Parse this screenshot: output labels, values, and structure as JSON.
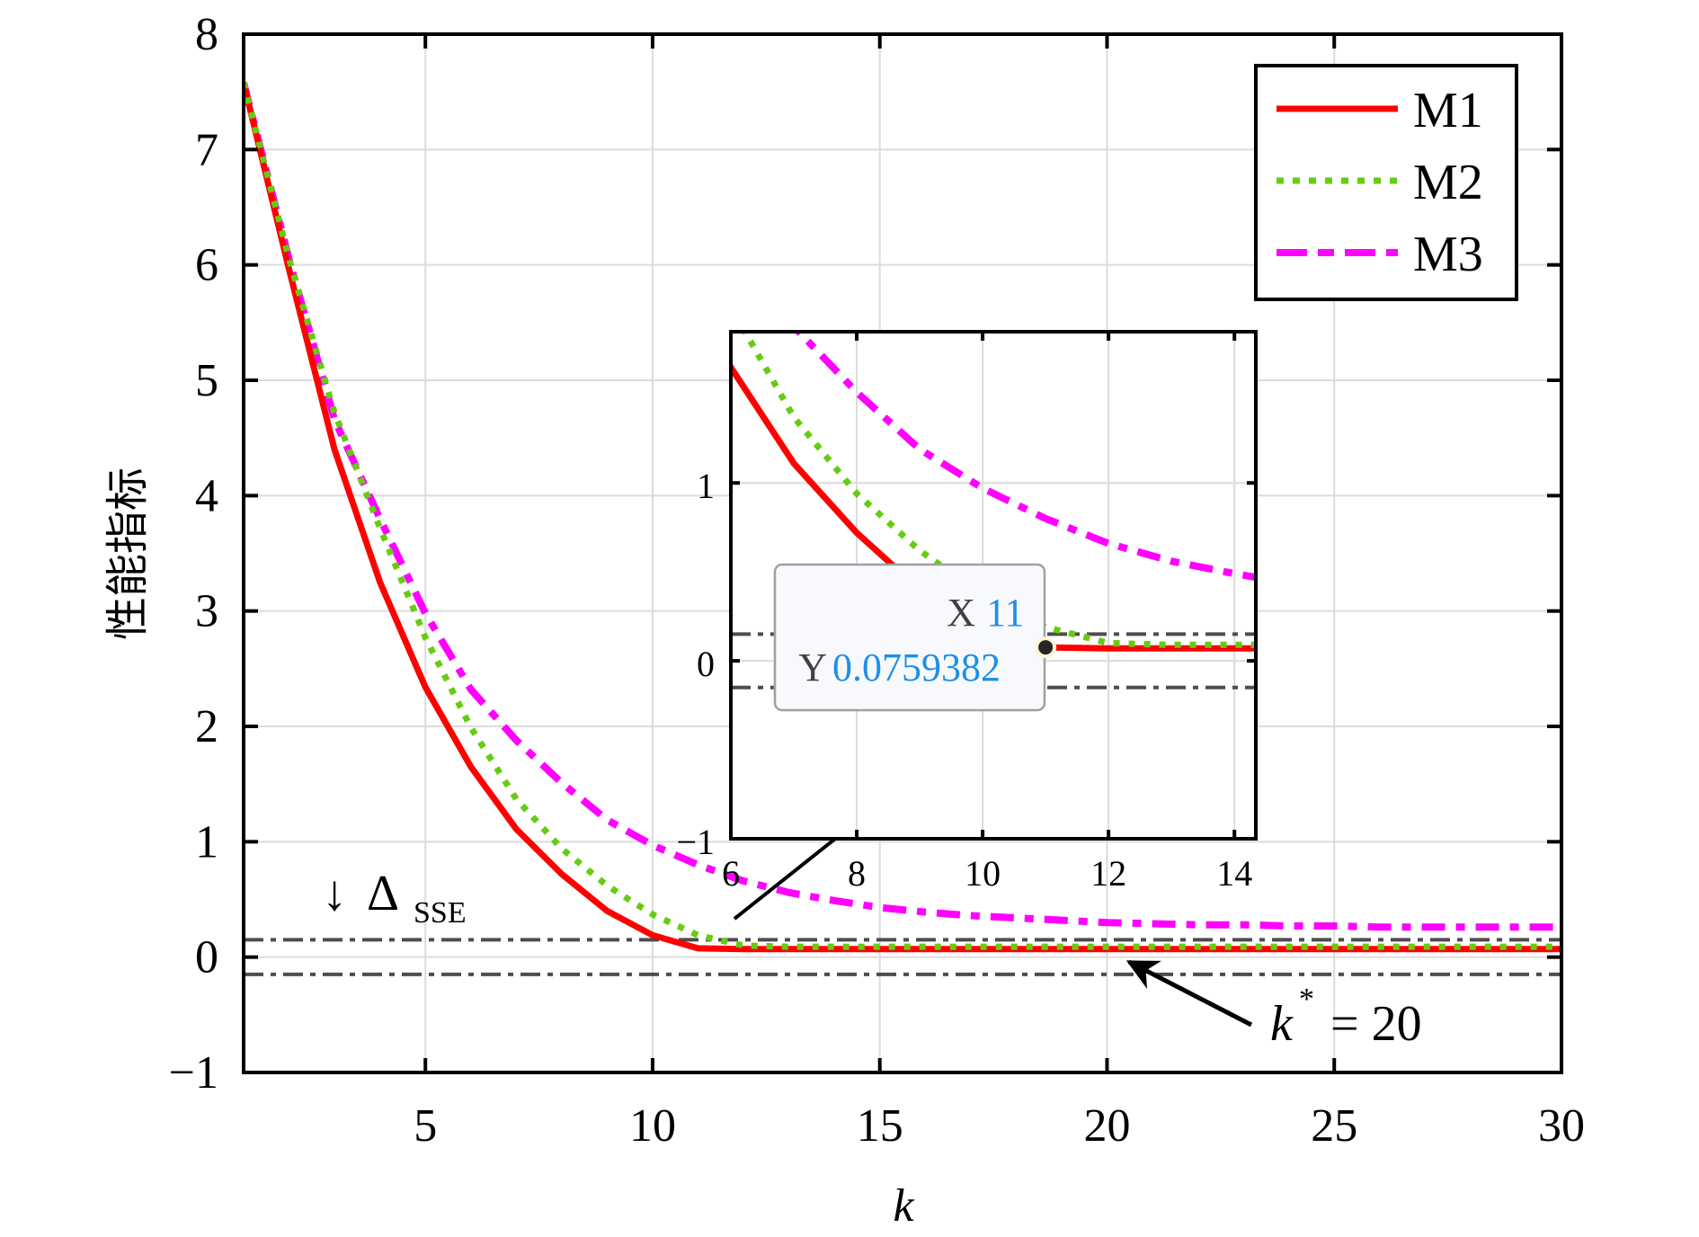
{
  "chart_data": {
    "type": "line",
    "title": "",
    "xlabel": "k",
    "ylabel": "性能指标",
    "xlim": [
      1,
      30
    ],
    "ylim": [
      -1,
      8
    ],
    "xticks": [
      5,
      10,
      15,
      20,
      25,
      30
    ],
    "xtick_labels": [
      "5",
      "10",
      "15",
      "20",
      "25",
      "30"
    ],
    "yticks": [
      -1,
      0,
      1,
      2,
      3,
      4,
      5,
      6,
      7,
      8
    ],
    "ytick_labels": [
      "−1",
      "0",
      "1",
      "2",
      "3",
      "4",
      "5",
      "6",
      "7",
      "8"
    ],
    "grid": true,
    "legend_position": "top-right",
    "x": [
      1,
      2,
      3,
      4,
      5,
      6,
      7,
      8,
      9,
      10,
      11,
      12,
      13,
      14,
      15,
      16,
      17,
      18,
      19,
      20,
      21,
      22,
      23,
      24,
      25,
      26,
      27,
      28,
      29,
      30
    ],
    "series": [
      {
        "name": "M1",
        "color": "#ff0000",
        "style": "solid",
        "values": [
          7.58,
          5.96,
          4.4,
          3.25,
          2.34,
          1.65,
          1.11,
          0.72,
          0.4,
          0.19,
          0.076,
          0.07,
          0.07,
          0.07,
          0.07,
          0.07,
          0.07,
          0.07,
          0.07,
          0.07,
          0.07,
          0.07,
          0.07,
          0.07,
          0.07,
          0.07,
          0.07,
          0.07,
          0.07,
          0.07
        ]
      },
      {
        "name": "M2",
        "color": "#66cc11",
        "style": "dotted",
        "values": [
          7.58,
          6.05,
          4.72,
          3.72,
          2.77,
          1.99,
          1.37,
          0.94,
          0.62,
          0.37,
          0.19,
          0.1,
          0.09,
          0.09,
          0.09,
          0.09,
          0.09,
          0.09,
          0.09,
          0.09,
          0.09,
          0.09,
          0.09,
          0.09,
          0.09,
          0.09,
          0.09,
          0.09,
          0.09,
          0.09
        ]
      },
      {
        "name": "M3",
        "color": "#ff00ff",
        "style": "dashdot",
        "values": [
          7.58,
          6.05,
          4.66,
          3.8,
          2.98,
          2.32,
          1.88,
          1.51,
          1.19,
          0.97,
          0.8,
          0.66,
          0.56,
          0.49,
          0.43,
          0.39,
          0.36,
          0.34,
          0.32,
          0.3,
          0.29,
          0.28,
          0.28,
          0.27,
          0.27,
          0.26,
          0.26,
          0.26,
          0.26,
          0.26
        ]
      }
    ],
    "reference_lines": [
      {
        "y": 0.15,
        "style": "dashdot",
        "color": "#4d4d4d"
      },
      {
        "y": -0.15,
        "style": "dashdot",
        "color": "#4d4d4d"
      }
    ],
    "annotations": {
      "delta_arrow": "↓",
      "delta_symbol": "Δ",
      "delta_subscript": "SSE",
      "kstar_text": "k",
      "kstar_sup": "*",
      "kstar_eq": "= 20"
    },
    "inset": {
      "xlim": [
        6,
        14.34
      ],
      "ylim": [
        -1,
        1.85
      ],
      "xticks": [
        6,
        8,
        10,
        12,
        14
      ],
      "xtick_labels": [
        "6",
        "8",
        "10",
        "12",
        "14"
      ],
      "yticks": [
        -1,
        0,
        1
      ],
      "ytick_labels": [
        "−1",
        "0",
        "1"
      ],
      "grid": true,
      "datatip": {
        "x_label": "X",
        "x_value": "11",
        "y_label": "Y",
        "y_value": "0.0759382",
        "x": 11,
        "y": 0.0759382,
        "value_color": "#1e90e6"
      }
    }
  }
}
